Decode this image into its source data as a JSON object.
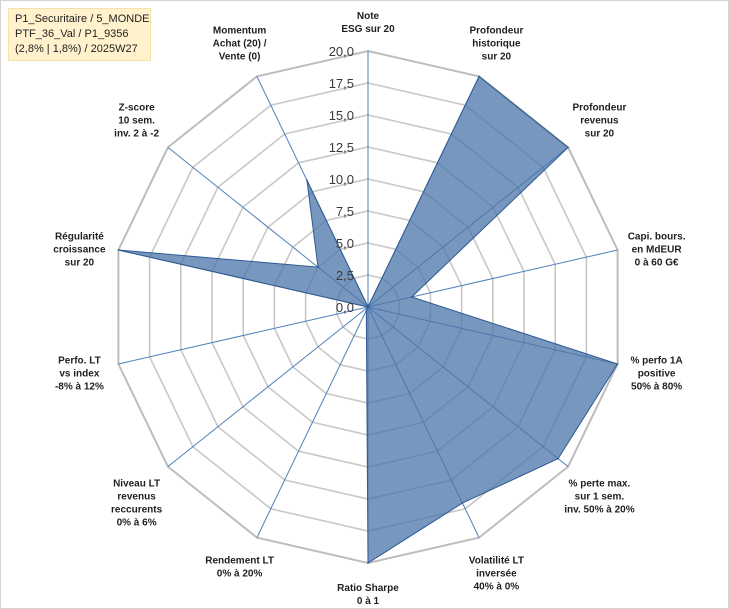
{
  "info": {
    "line1": "P1_Securitaire / 5_MONDE",
    "line2": "PTF_36_Val / P1_9356",
    "line3": "(2,8% | 1,8%) / 2025W27"
  },
  "colors": {
    "area": "#4a74a8",
    "spoke": "#4f81bd",
    "grid": "#c8c8c8",
    "info_bg": "#fff2cc"
  },
  "chart_data": {
    "type": "radar",
    "rmax": 20,
    "ticks": [
      "0,0",
      "2,5",
      "5,0",
      "7,5",
      "10,0",
      "12,5",
      "15,0",
      "17,5",
      "20,0"
    ],
    "categories": [
      [
        "Note",
        "ESG sur 20"
      ],
      [
        "Profondeur",
        "historique",
        "sur 20"
      ],
      [
        "Profondeur",
        "revenus",
        "sur 20"
      ],
      [
        "Capi. bours.",
        "en MdEUR",
        "0 à 60 G€"
      ],
      [
        "% perfo 1A",
        "positive",
        "50% à 80%"
      ],
      [
        "% perte max.",
        "sur 1 sem.",
        "inv. 50% à 20%"
      ],
      [
        "Volatilité LT",
        "inversée",
        "40% à 0%"
      ],
      [
        "Ratio Sharpe",
        "0 à 1"
      ],
      [
        "Rendement LT",
        "0% à 20%"
      ],
      [
        "Niveau LT",
        "revenus",
        "reccurents",
        "0% à 6%"
      ],
      [
        "Perfo. LT",
        "vs index",
        "-8% à 12%"
      ],
      [
        "Régularité",
        "croissance",
        "sur 20"
      ],
      [
        "Z-score",
        "10 sem.",
        "inv. 2 à -2"
      ],
      [
        "Momentum",
        "Achat (20) /",
        "Vente (0)"
      ]
    ],
    "values": [
      0,
      20,
      20,
      3.5,
      20,
      19,
      17,
      20,
      0.3,
      0,
      0,
      20,
      5,
      11
    ],
    "grid": true
  }
}
